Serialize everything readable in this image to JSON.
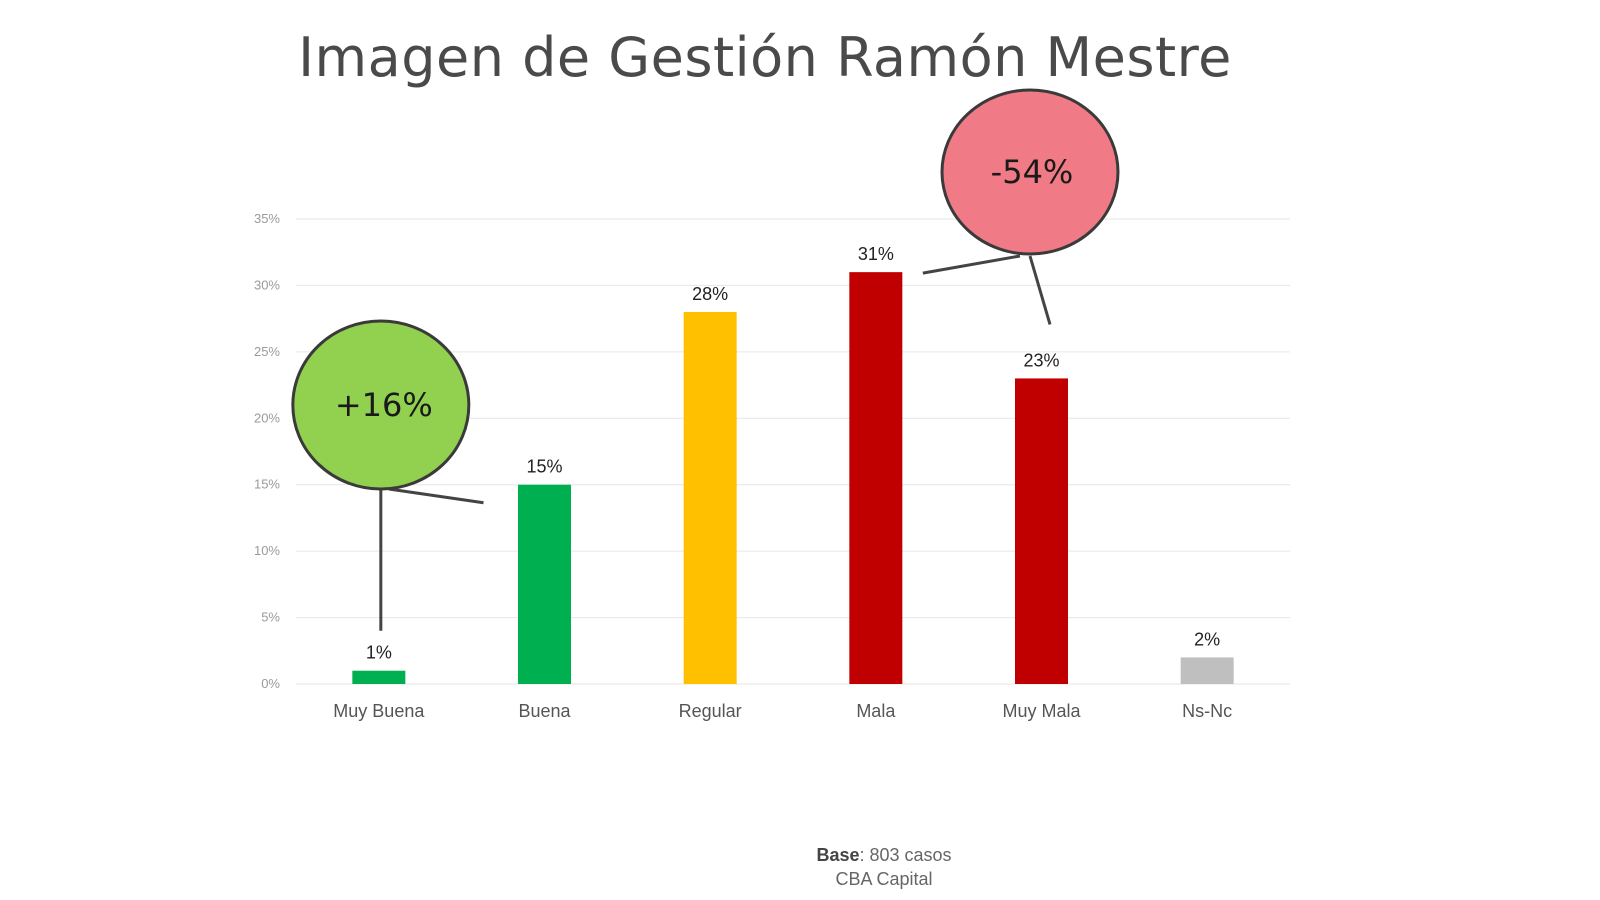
{
  "chart_data": {
    "type": "bar",
    "title": "Imagen de Gestión Ramón Mestre",
    "xlabel": "",
    "ylabel": "",
    "categories": [
      "Muy Buena",
      "Buena",
      "Regular",
      "Mala",
      "Muy Mala",
      "Ns-Nc"
    ],
    "values": [
      1,
      15,
      28,
      31,
      23,
      2
    ],
    "value_labels": [
      "1%",
      "15%",
      "28%",
      "31%",
      "23%",
      "2%"
    ],
    "colors": [
      "#00b050",
      "#00b050",
      "#ffc000",
      "#c00000",
      "#c00000",
      "#bfbfbf"
    ],
    "ylim": [
      0,
      35
    ],
    "yticks": [
      0,
      5,
      10,
      15,
      20,
      25,
      30,
      35
    ],
    "ytick_labels": [
      "0%",
      "5%",
      "10%",
      "15%",
      "20%",
      "25%",
      "30%",
      "35%"
    ],
    "grid": true,
    "legend": "none",
    "annotations": [
      {
        "text": "+16%",
        "color": "#92d050",
        "text_color": "#1a1a1a",
        "refers_to": [
          "Muy Buena",
          "Buena"
        ]
      },
      {
        "text": "-54%",
        "color": "#f07a85",
        "text_color": "#1a1a1a",
        "refers_to": [
          "Mala",
          "Muy Mala"
        ]
      }
    ]
  },
  "footer": {
    "base_label": "Base",
    "base_value": ": 803 casos",
    "region": "CBA Capital"
  }
}
